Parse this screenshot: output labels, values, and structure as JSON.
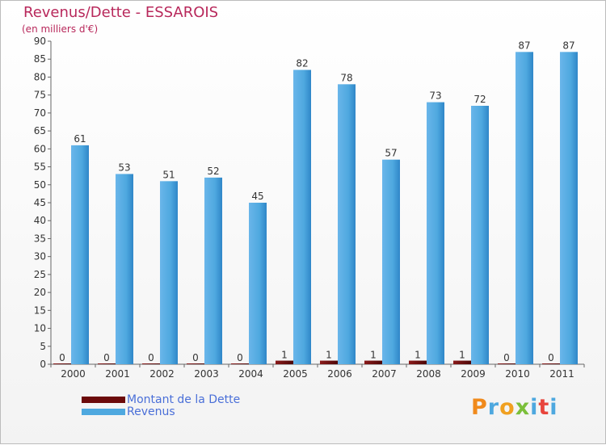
{
  "header": {
    "title": "Revenus/Dette - ESSAROIS",
    "subtitle": "(en milliers d'€)"
  },
  "chart_data": {
    "type": "bar",
    "categories": [
      "2000",
      "2001",
      "2002",
      "2003",
      "2004",
      "2005",
      "2006",
      "2007",
      "2008",
      "2009",
      "2010",
      "2011"
    ],
    "series": [
      {
        "name": "Montant de la Dette",
        "color": "#6b0a0a",
        "values": [
          0,
          0,
          0,
          0,
          0,
          1,
          1,
          1,
          1,
          1,
          0,
          0
        ]
      },
      {
        "name": "Revenus",
        "color": "#4ea8df",
        "values": [
          61,
          53,
          51,
          52,
          45,
          82,
          78,
          57,
          73,
          72,
          87,
          87
        ]
      }
    ],
    "ylim": [
      0,
      90
    ],
    "ytick_step": 5,
    "grid": false,
    "legend_position": "bottom-left"
  },
  "legend": [
    "Montant de la Dette",
    "Revenus"
  ],
  "logo": {
    "p": "P",
    "r": "r",
    "o": "o",
    "x": "x",
    "i": "i",
    "t": "t",
    "i2": "i"
  }
}
